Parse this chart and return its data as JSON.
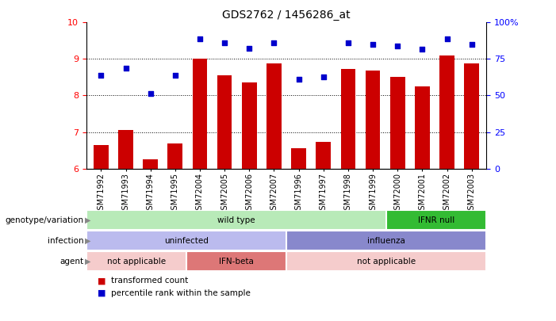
{
  "title": "GDS2762 / 1456286_at",
  "samples": [
    "GSM71992",
    "GSM71993",
    "GSM71994",
    "GSM71995",
    "GSM72004",
    "GSM72005",
    "GSM72006",
    "GSM72007",
    "GSM71996",
    "GSM71997",
    "GSM71998",
    "GSM71999",
    "GSM72000",
    "GSM72001",
    "GSM72002",
    "GSM72003"
  ],
  "bar_values": [
    6.65,
    7.05,
    6.25,
    6.68,
    9.0,
    8.55,
    8.35,
    8.88,
    6.55,
    6.72,
    8.72,
    8.68,
    8.52,
    8.25,
    9.1,
    8.88
  ],
  "dot_values": [
    8.55,
    8.75,
    8.05,
    8.55,
    9.55,
    9.45,
    9.3,
    9.45,
    8.45,
    8.52,
    9.45,
    9.4,
    9.35,
    9.28,
    9.55,
    9.4
  ],
  "ylim": [
    6,
    10
  ],
  "yticks": [
    6,
    7,
    8,
    9,
    10
  ],
  "y2ticks": [
    0,
    25,
    50,
    75,
    100
  ],
  "y2labels": [
    "0",
    "25",
    "50",
    "75",
    "100%"
  ],
  "bar_color": "#cc0000",
  "dot_color": "#0000cc",
  "annotation_rows": [
    {
      "label": "genotype/variation",
      "segments": [
        {
          "text": "wild type",
          "start": 0,
          "end": 12,
          "color": "#b8eab8"
        },
        {
          "text": "IFNR null",
          "start": 12,
          "end": 16,
          "color": "#33bb33"
        }
      ]
    },
    {
      "label": "infection",
      "segments": [
        {
          "text": "uninfected",
          "start": 0,
          "end": 8,
          "color": "#bbbbee"
        },
        {
          "text": "influenza",
          "start": 8,
          "end": 16,
          "color": "#8888cc"
        }
      ]
    },
    {
      "label": "agent",
      "segments": [
        {
          "text": "not applicable",
          "start": 0,
          "end": 4,
          "color": "#f5cccc"
        },
        {
          "text": "IFN-beta",
          "start": 4,
          "end": 8,
          "color": "#dd7777"
        },
        {
          "text": "not applicable",
          "start": 8,
          "end": 16,
          "color": "#f5cccc"
        }
      ]
    }
  ],
  "legend_items": [
    {
      "label": "transformed count",
      "color": "#cc0000"
    },
    {
      "label": "percentile rank within the sample",
      "color": "#0000cc"
    }
  ]
}
